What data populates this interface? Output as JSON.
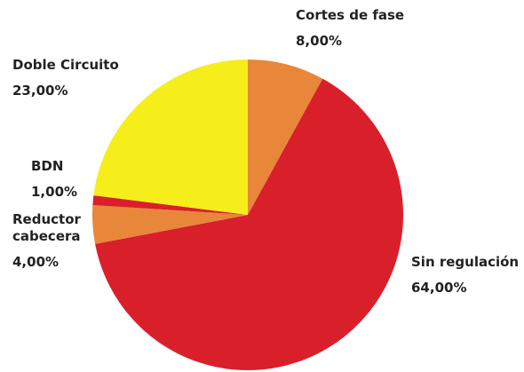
{
  "chart_data": {
    "type": "pie",
    "categories": [
      "Cortes de fase",
      "Sin regulación",
      "Reductor cabecera",
      "BDN",
      "Doble Circuito"
    ],
    "values": [
      8,
      64,
      4,
      1,
      23
    ],
    "value_labels": [
      "8,00%",
      "64,00%",
      "4,00%",
      "1,00%",
      "23,00%"
    ],
    "colors": [
      "#e8873a",
      "#d9202a",
      "#e8873a",
      "#d9202a",
      "#f6ee1a"
    ]
  }
}
